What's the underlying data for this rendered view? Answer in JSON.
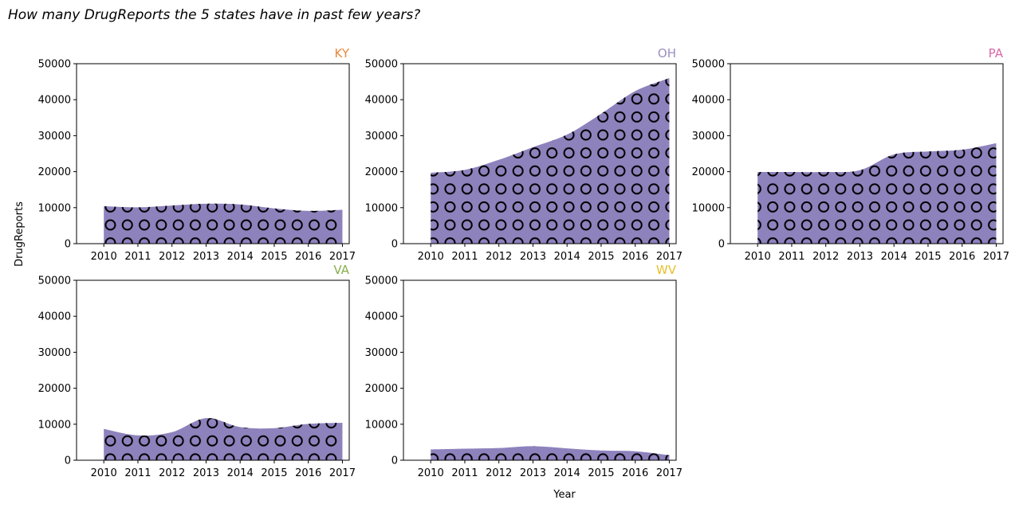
{
  "chart_data": {
    "type": "area",
    "title": "How many DrugReports the 5 states have in past few years?",
    "xlabel": "Year",
    "ylabel": "DrugReports",
    "x": [
      2010,
      2011,
      2012,
      2013,
      2014,
      2015,
      2016,
      2017
    ],
    "xlim": [
      2009.2,
      2017.2
    ],
    "ylim": [
      0,
      50000
    ],
    "yticks": [
      0,
      10000,
      20000,
      30000,
      40000,
      50000
    ],
    "fill_color": "#8e82bd",
    "hatch": "circles",
    "series": [
      {
        "name": "KY",
        "color": "#e8883a",
        "values": [
          10400,
          10100,
          10600,
          11100,
          10900,
          9800,
          9100,
          9400
        ]
      },
      {
        "name": "OH",
        "color": "#9a8fbf",
        "values": [
          19700,
          20500,
          23300,
          26800,
          30300,
          36100,
          42400,
          46000
        ]
      },
      {
        "name": "PA",
        "color": "#d966a6",
        "values": [
          19900,
          19900,
          19900,
          20400,
          24800,
          25600,
          26100,
          27900
        ]
      },
      {
        "name": "VA",
        "color": "#86b04a",
        "values": [
          8700,
          6900,
          7800,
          11700,
          9200,
          8900,
          10100,
          10400
        ]
      },
      {
        "name": "WV",
        "color": "#e8bf2a",
        "values": [
          3000,
          3200,
          3400,
          3900,
          3300,
          2700,
          2500,
          1400
        ]
      }
    ]
  }
}
